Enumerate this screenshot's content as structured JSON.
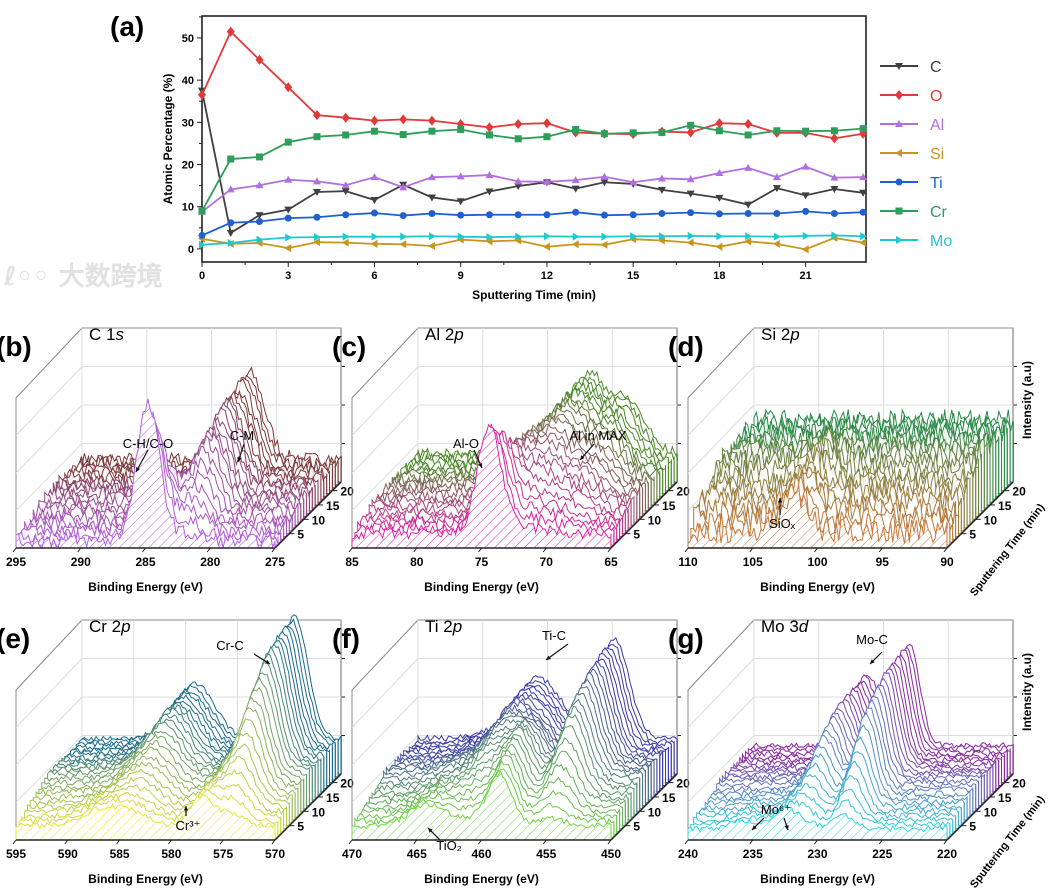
{
  "watermark": "大数跨境",
  "chart_data": [
    {
      "id": "a",
      "panel_label": "(a)",
      "type": "line",
      "xlabel": "Sputtering Time (min)",
      "ylabel": "Atomic Percentage (%)",
      "xlim": [
        0,
        23.1
      ],
      "ylim": [
        -3.1,
        55.2
      ],
      "xticks": [
        0,
        3,
        6,
        9,
        12,
        15,
        18,
        21
      ],
      "yticks": [
        0,
        10,
        20,
        30,
        40,
        50
      ],
      "legend_position": "right-outside",
      "x": [
        0,
        1,
        2,
        3,
        4,
        5,
        6,
        7,
        8,
        9,
        10,
        11,
        12,
        13,
        14,
        15,
        16,
        17,
        18,
        19,
        20,
        21,
        22,
        23
      ],
      "series": [
        {
          "name": "C",
          "color": "#404040",
          "marker": "triangle-down",
          "values": [
            37.5,
            3.8,
            8.0,
            9.3,
            13.5,
            13.7,
            11.6,
            15.2,
            12.2,
            11.3,
            13.6,
            14.9,
            15.8,
            14.3,
            15.8,
            15.4,
            14.0,
            13.1,
            12.1,
            10.5,
            14.4,
            12.7,
            14.2,
            13.3
          ]
        },
        {
          "name": "O",
          "color": "#e03a3a",
          "marker": "diamond",
          "values": [
            36.5,
            51.5,
            44.8,
            38.3,
            31.7,
            31.1,
            30.4,
            30.7,
            30.4,
            29.6,
            28.8,
            29.6,
            29.8,
            27.6,
            27.3,
            27.2,
            27.8,
            27.6,
            29.8,
            29.6,
            27.5,
            27.5,
            26.2,
            27.3
          ]
        },
        {
          "name": "Al",
          "color": "#b070e0",
          "marker": "triangle-up",
          "values": [
            8.8,
            14.1,
            15.1,
            16.4,
            16.0,
            15.1,
            17.0,
            14.6,
            17.0,
            17.2,
            17.5,
            16.0,
            15.9,
            16.3,
            17.1,
            15.8,
            16.7,
            16.5,
            18.0,
            19.2,
            17.0,
            19.5,
            16.9,
            17.0
          ]
        },
        {
          "name": "Si",
          "color": "#c8961e",
          "marker": "triangle-left",
          "values": [
            2.4,
            1.2,
            1.4,
            0.2,
            1.6,
            1.5,
            1.2,
            1.1,
            0.7,
            2.2,
            1.8,
            2.0,
            0.5,
            1.1,
            1.0,
            2.3,
            2.0,
            1.5,
            0.5,
            1.8,
            1.2,
            -0.1,
            2.6,
            1.5
          ]
        },
        {
          "name": "Ti",
          "color": "#1f5fd0",
          "marker": "circle",
          "values": [
            3.2,
            6.2,
            6.5,
            7.3,
            7.5,
            8.1,
            8.5,
            7.9,
            8.4,
            8.0,
            8.1,
            8.1,
            8.1,
            8.7,
            8.0,
            8.1,
            8.4,
            8.6,
            8.3,
            8.4,
            8.4,
            8.9,
            8.4,
            8.7
          ]
        },
        {
          "name": "Cr",
          "color": "#2e9e5a",
          "marker": "square",
          "values": [
            9.0,
            21.3,
            21.8,
            25.3,
            26.6,
            27.0,
            27.9,
            27.1,
            27.9,
            28.3,
            27.0,
            26.1,
            26.6,
            28.3,
            27.3,
            27.5,
            27.6,
            29.3,
            28.0,
            27.0,
            28.0,
            27.9,
            28.0,
            28.5
          ]
        },
        {
          "name": "Mo",
          "color": "#20c8d0",
          "marker": "triangle-right",
          "values": [
            1.0,
            1.4,
            2.2,
            2.7,
            2.8,
            2.9,
            2.9,
            2.9,
            3.0,
            2.9,
            2.8,
            2.9,
            3.0,
            2.9,
            2.9,
            3.0,
            3.0,
            3.1,
            3.0,
            3.0,
            2.9,
            3.1,
            3.2,
            3.0
          ]
        }
      ]
    },
    {
      "id": "b",
      "panel_label": "(b)",
      "type": "waterfall",
      "title_main": "C 1",
      "title_orbital": "s",
      "xlabel": "Binding Energy (eV)",
      "xlim": [
        295,
        275
      ],
      "xticks": [
        295,
        290,
        285,
        280,
        275
      ],
      "depth_ticks": [
        5,
        10,
        15,
        20
      ],
      "depth_range": [
        0,
        23
      ],
      "color_front": "#b45ee0",
      "color_back": "#7a3838",
      "noise": 0.05,
      "baseline": [
        0.05,
        0.16
      ],
      "peaks": [
        {
          "center": 284.8,
          "width": 0.9,
          "amp": [
            0.95,
            0.15,
            0.02,
            0.0
          ]
        },
        {
          "center": 282.0,
          "width": 1.1,
          "amp": [
            0.05,
            0.45,
            0.55,
            0.6
          ]
        }
      ],
      "annotations": [
        "C-H/C-O",
        "C-M"
      ],
      "show_side_labels": false
    },
    {
      "id": "c",
      "panel_label": "(c)",
      "type": "waterfall",
      "title_main": "Al 2",
      "title_orbital": "p",
      "xlabel": "Binding Energy (eV)",
      "xlim": [
        85,
        65
      ],
      "xticks": [
        85,
        80,
        75,
        70,
        65
      ],
      "depth_ticks": [
        5,
        10,
        15,
        20
      ],
      "depth_range": [
        0,
        23
      ],
      "color_front": "#e020a8",
      "color_back": "#4a8a28",
      "noise": 0.04,
      "baseline": [
        0.1,
        0.2
      ],
      "peaks": [
        {
          "center": 74.4,
          "width": 0.9,
          "amp": [
            0.75,
            0.3,
            0.15,
            0.1
          ]
        },
        {
          "center": 71.8,
          "width": 1.6,
          "amp": [
            0.05,
            0.35,
            0.5,
            0.55
          ]
        },
        {
          "center": 68.5,
          "width": 1.2,
          "amp": [
            0.0,
            0.15,
            0.25,
            0.3
          ]
        }
      ],
      "annotations": [
        "Al-O",
        "Al in MAX"
      ],
      "show_side_labels": false
    },
    {
      "id": "d",
      "panel_label": "(d)",
      "type": "waterfall",
      "title_main": "Si 2",
      "title_orbital": "p",
      "xlabel": "Binding Energy (eV)",
      "ylabel": "Intensity (a.u)",
      "zlabel": "Sputtering Time (min)",
      "xlim": [
        110,
        90
      ],
      "xticks": [
        110,
        105,
        100,
        95,
        90
      ],
      "depth_ticks": [
        5,
        10,
        15,
        20
      ],
      "depth_range": [
        0,
        23
      ],
      "color_front": "#c8783a",
      "color_back": "#2a8a48",
      "noise": 0.09,
      "baseline": [
        0.12,
        0.42
      ],
      "peaks": [
        {
          "center": 101.8,
          "width": 0.9,
          "amp": [
            0.25,
            0.15,
            0.05,
            0.0
          ]
        }
      ],
      "annotations": [
        "SiOₓ"
      ],
      "show_side_labels": true
    },
    {
      "id": "e",
      "panel_label": "(e)",
      "type": "waterfall",
      "title_main": "Cr 2",
      "title_orbital": "p",
      "xlabel": "Binding Energy (eV)",
      "xlim": [
        595,
        570
      ],
      "xticks": [
        595,
        590,
        585,
        580,
        575,
        570
      ],
      "depth_ticks": [
        5,
        10,
        15,
        20
      ],
      "depth_range": [
        0,
        23
      ],
      "color_front": "#e0e838",
      "color_back": "#1a6a8c",
      "noise": 0.02,
      "baseline": [
        0.1,
        0.25
      ],
      "peaks": [
        {
          "center": 574.5,
          "width": 1.3,
          "amp": [
            0.1,
            0.55,
            0.8,
            0.85
          ]
        },
        {
          "center": 577.2,
          "width": 1.0,
          "amp": [
            0.2,
            0.1,
            0.05,
            0.05
          ]
        },
        {
          "center": 584.0,
          "width": 1.8,
          "amp": [
            0.08,
            0.25,
            0.35,
            0.38
          ]
        },
        {
          "center": 587.0,
          "width": 2.0,
          "amp": [
            0.1,
            0.05,
            0.03,
            0.02
          ]
        }
      ],
      "annotations": [
        "Cr-C",
        "Cr³⁺"
      ],
      "show_side_labels": false
    },
    {
      "id": "f",
      "panel_label": "(f)",
      "type": "waterfall",
      "title_main": "Ti 2",
      "title_orbital": "p",
      "xlabel": "Binding Energy (eV)",
      "xlim": [
        470,
        450
      ],
      "xticks": [
        470,
        465,
        460,
        455,
        450
      ],
      "depth_ticks": [
        5,
        10,
        15,
        20
      ],
      "depth_range": [
        0,
        23
      ],
      "color_front": "#72d442",
      "color_back": "#3838a8",
      "noise": 0.02,
      "baseline": [
        0.1,
        0.25
      ],
      "peaks": [
        {
          "center": 454.8,
          "width": 1.1,
          "amp": [
            0.05,
            0.5,
            0.65,
            0.7
          ]
        },
        {
          "center": 458.6,
          "width": 0.9,
          "amp": [
            0.35,
            0.3,
            0.12,
            0.08
          ]
        },
        {
          "center": 460.8,
          "width": 1.5,
          "amp": [
            0.05,
            0.3,
            0.4,
            0.42
          ]
        },
        {
          "center": 464.3,
          "width": 1.3,
          "amp": [
            0.15,
            0.08,
            0.05,
            0.04
          ]
        }
      ],
      "annotations": [
        "Ti-C",
        "TiO₂"
      ],
      "show_side_labels": false
    },
    {
      "id": "g",
      "panel_label": "(g)",
      "type": "waterfall",
      "title_main": "Mo 3",
      "title_orbital": "d",
      "xlabel": "Binding Energy (eV)",
      "ylabel": "Intensity (a.u)",
      "zlabel": "Sputtering Time (min)",
      "xlim": [
        240,
        220
      ],
      "xticks": [
        240,
        235,
        230,
        225,
        220
      ],
      "depth_ticks": [
        5,
        10,
        15,
        20
      ],
      "depth_range": [
        0,
        23
      ],
      "color_front": "#30d4dc",
      "color_back": "#8a28a0",
      "noise": 0.02,
      "baseline": [
        0.08,
        0.2
      ],
      "peaks": [
        {
          "center": 228.0,
          "width": 0.8,
          "amp": [
            0.1,
            0.55,
            0.68,
            0.72
          ]
        },
        {
          "center": 231.2,
          "width": 0.9,
          "amp": [
            0.05,
            0.38,
            0.48,
            0.5
          ]
        },
        {
          "center": 232.6,
          "width": 0.9,
          "amp": [
            0.12,
            0.04,
            0.02,
            0.0
          ]
        },
        {
          "center": 235.7,
          "width": 1.0,
          "amp": [
            0.06,
            0.02,
            0.0,
            0.0
          ]
        }
      ],
      "annotations": [
        "Mo-C",
        "Mo⁶⁺"
      ],
      "show_side_labels": true
    }
  ]
}
